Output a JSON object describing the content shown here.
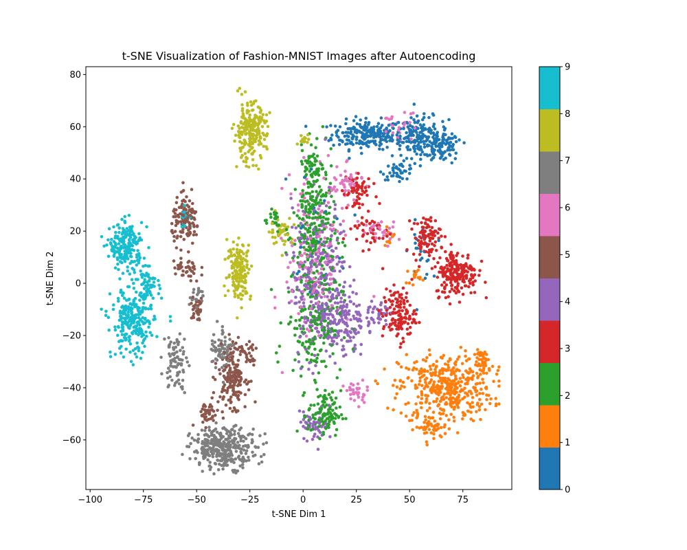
{
  "chart_data": {
    "type": "scatter",
    "title": "t-SNE Visualization of Fashion-MNIST Images after Autoencoding",
    "xlabel": "t-SNE Dim 1",
    "ylabel": "t-SNE Dim 2",
    "xlim": [
      -102,
      98
    ],
    "ylim": [
      -79,
      83
    ],
    "xticks": [
      -100,
      -75,
      -50,
      -25,
      0,
      25,
      50,
      75
    ],
    "yticks": [
      -60,
      -40,
      -20,
      0,
      20,
      40,
      60,
      80
    ],
    "grid": false,
    "colorbar": {
      "range": [
        0,
        9
      ],
      "ticks": [
        0,
        1,
        2,
        3,
        4,
        5,
        6,
        7,
        8,
        9
      ],
      "colors": [
        "#1f77b4",
        "#ff7f0e",
        "#2ca02c",
        "#d62728",
        "#9467bd",
        "#8c564b",
        "#e377c2",
        "#7f7f7f",
        "#bcbd22",
        "#17becf"
      ]
    },
    "clusters": [
      {
        "label": 0,
        "parts": [
          {
            "cx": 30,
            "cy": 57,
            "rx": 15,
            "ry": 5,
            "n": 220
          },
          {
            "cx": 55,
            "cy": 56,
            "rx": 12,
            "ry": 7,
            "n": 170
          },
          {
            "cx": 65,
            "cy": 52,
            "rx": 8,
            "ry": 5,
            "n": 90
          },
          {
            "cx": 45,
            "cy": 43,
            "rx": 7,
            "ry": 3,
            "n": 40
          },
          {
            "cx": 55,
            "cy": 12,
            "rx": 5,
            "ry": 10,
            "n": 25
          },
          {
            "cx": 5,
            "cy": 20,
            "rx": 15,
            "ry": 25,
            "n": 30
          }
        ]
      },
      {
        "label": 1,
        "parts": [
          {
            "cx": 67,
            "cy": -40,
            "rx": 20,
            "ry": 12,
            "n": 420
          },
          {
            "cx": 60,
            "cy": -55,
            "rx": 7,
            "ry": 4,
            "n": 50
          },
          {
            "cx": 85,
            "cy": -30,
            "rx": 4,
            "ry": 4,
            "n": 40
          },
          {
            "cx": 52,
            "cy": 3,
            "rx": 3,
            "ry": 3,
            "n": 15
          },
          {
            "cx": 40,
            "cy": 18,
            "rx": 3,
            "ry": 3,
            "n": 10
          }
        ]
      },
      {
        "label": 2,
        "parts": [
          {
            "cx": 5,
            "cy": 20,
            "rx": 9,
            "ry": 25,
            "n": 260
          },
          {
            "cx": 5,
            "cy": -15,
            "rx": 12,
            "ry": 18,
            "n": 170
          },
          {
            "cx": 10,
            "cy": -50,
            "rx": 7,
            "ry": 8,
            "n": 110
          },
          {
            "cx": 5,
            "cy": 45,
            "rx": 4,
            "ry": 6,
            "n": 50
          },
          {
            "cx": -15,
            "cy": 25,
            "rx": 5,
            "ry": 5,
            "n": 20
          }
        ]
      },
      {
        "label": 3,
        "parts": [
          {
            "cx": 72,
            "cy": 4,
            "rx": 9,
            "ry": 8,
            "n": 200
          },
          {
            "cx": 58,
            "cy": 18,
            "rx": 6,
            "ry": 7,
            "n": 90
          },
          {
            "cx": 45,
            "cy": -12,
            "rx": 7,
            "ry": 9,
            "n": 130
          },
          {
            "cx": 25,
            "cy": 35,
            "rx": 6,
            "ry": 8,
            "n": 60
          },
          {
            "cx": 30,
            "cy": 20,
            "rx": 10,
            "ry": 6,
            "n": 40
          }
        ]
      },
      {
        "label": 4,
        "parts": [
          {
            "cx": 8,
            "cy": 0,
            "rx": 12,
            "ry": 28,
            "n": 330
          },
          {
            "cx": 20,
            "cy": -15,
            "rx": 8,
            "ry": 12,
            "n": 110
          },
          {
            "cx": 5,
            "cy": -55,
            "rx": 6,
            "ry": 5,
            "n": 50
          },
          {
            "cx": 35,
            "cy": -12,
            "rx": 5,
            "ry": 5,
            "n": 40
          }
        ]
      },
      {
        "label": 5,
        "parts": [
          {
            "cx": -55,
            "cy": 24,
            "rx": 6,
            "ry": 8,
            "n": 130
          },
          {
            "cx": -55,
            "cy": 5,
            "rx": 6,
            "ry": 5,
            "n": 40
          },
          {
            "cx": -50,
            "cy": -10,
            "rx": 3,
            "ry": 4,
            "n": 30
          },
          {
            "cx": -33,
            "cy": -35,
            "rx": 6,
            "ry": 11,
            "n": 180
          },
          {
            "cx": -45,
            "cy": -50,
            "rx": 5,
            "ry": 4,
            "n": 40
          },
          {
            "cx": -25,
            "cy": -28,
            "rx": 3,
            "ry": 4,
            "n": 20
          }
        ]
      },
      {
        "label": 6,
        "parts": [
          {
            "cx": 5,
            "cy": 10,
            "rx": 12,
            "ry": 30,
            "n": 160
          },
          {
            "cx": 20,
            "cy": 38,
            "rx": 7,
            "ry": 6,
            "n": 50
          },
          {
            "cx": 25,
            "cy": -42,
            "rx": 5,
            "ry": 4,
            "n": 30
          },
          {
            "cx": 35,
            "cy": 20,
            "rx": 8,
            "ry": 5,
            "n": 30
          },
          {
            "cx": 45,
            "cy": 60,
            "rx": 8,
            "ry": 5,
            "n": 30
          }
        ]
      },
      {
        "label": 7,
        "parts": [
          {
            "cx": -37,
            "cy": -63,
            "rx": 14,
            "ry": 7,
            "n": 330
          },
          {
            "cx": -38,
            "cy": -25,
            "rx": 5,
            "ry": 8,
            "n": 70
          },
          {
            "cx": -60,
            "cy": -30,
            "rx": 5,
            "ry": 10,
            "n": 80
          },
          {
            "cx": -50,
            "cy": -5,
            "rx": 3,
            "ry": 5,
            "n": 20
          }
        ]
      },
      {
        "label": 8,
        "parts": [
          {
            "cx": -25,
            "cy": 58,
            "rx": 7,
            "ry": 10,
            "n": 230
          },
          {
            "cx": -30,
            "cy": 5,
            "rx": 5,
            "ry": 10,
            "n": 160
          },
          {
            "cx": -10,
            "cy": 20,
            "rx": 5,
            "ry": 5,
            "n": 40
          },
          {
            "cx": 0,
            "cy": 55,
            "rx": 3,
            "ry": 2,
            "n": 15
          }
        ]
      },
      {
        "label": 9,
        "parts": [
          {
            "cx": -83,
            "cy": 14,
            "rx": 7,
            "ry": 8,
            "n": 210
          },
          {
            "cx": -80,
            "cy": -15,
            "rx": 9,
            "ry": 12,
            "n": 260
          },
          {
            "cx": -73,
            "cy": 0,
            "rx": 5,
            "ry": 5,
            "n": 50
          },
          {
            "cx": -55,
            "cy": 25,
            "rx": 3,
            "ry": 4,
            "n": 20
          }
        ]
      }
    ]
  }
}
